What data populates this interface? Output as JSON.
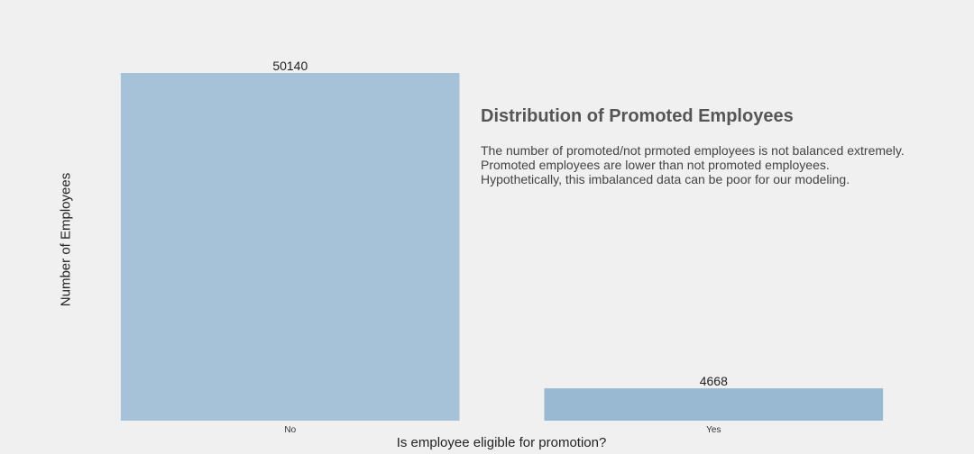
{
  "chart_data": {
    "type": "bar",
    "categories": [
      "No",
      "Yes"
    ],
    "values": [
      50140,
      4668
    ],
    "xlabel": "Is employee eligible for promotion?",
    "ylabel": "Number of Employees",
    "ylim": [
      0,
      50140
    ],
    "grid": false,
    "colors": [
      "#a5c2d8",
      "#98b9d1"
    ],
    "annotation": {
      "title": "Distribution of Promoted Employees",
      "lines": [
        "The number of promoted/not prmoted employees is not balanced extremely.",
        "Promoted employees are lower than not promoted employees.",
        "Hypothetically, this imbalanced data can be poor for our modeling."
      ]
    }
  }
}
